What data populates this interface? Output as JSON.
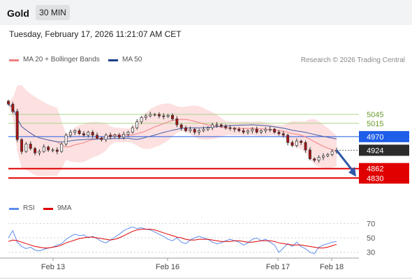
{
  "header": {
    "instrument": "Gold",
    "timeframe": "30 MIN",
    "datetime": "Tuesday, February 17, 2026 11:21:07 AM CET",
    "credit": "Research © 2026 Trading Central"
  },
  "legend": {
    "ma20": "MA 20 + Bollinger Bands",
    "ma50": "MA 50",
    "rsi": "RSI",
    "ma9": "9MA"
  },
  "colors": {
    "ma20": "#f08080",
    "ma50": "#3e5fa8",
    "band_fill": "#fde0e0",
    "green_level": "#a8d58b",
    "resistance_blue": "#1f5ee8",
    "support_red": "#e00000",
    "current_price_box": "#2b2b2b",
    "rsi": "#5b8def",
    "rsi_ma": "#e00000",
    "candle_up": "#ffffff",
    "candle_down": "#aa1111",
    "wick": "#333333",
    "arrow": "#2f56a8"
  },
  "chart_data": [
    {
      "type": "candlestick",
      "title": "",
      "x_ticks": [
        "Feb 13",
        "Feb 16",
        "Feb 17",
        "Feb 18"
      ],
      "ylim": [
        4800,
        5130
      ],
      "levels": [
        {
          "value": 5045,
          "label": "5045",
          "kind": "resistance-weak"
        },
        {
          "value": 5015,
          "label": "5015",
          "kind": "resistance-weak"
        },
        {
          "value": 4970,
          "label": "4970",
          "kind": "pivot"
        },
        {
          "value": 4924,
          "label": "4924",
          "kind": "current"
        },
        {
          "value": 4862,
          "label": "4862",
          "kind": "support"
        },
        {
          "value": 4830,
          "label": "4830",
          "kind": "support"
        }
      ],
      "forecast_target": 4830,
      "price": [
        5080,
        5055,
        4960,
        4920,
        4945,
        4930,
        4915,
        4920,
        4935,
        4925,
        4925,
        4920,
        4945,
        4975,
        4985,
        4990,
        4980,
        4975,
        4985,
        4975,
        4965,
        4960,
        4975,
        4970,
        4975,
        4968,
        4978,
        4985,
        5000,
        5020,
        5035,
        5040,
        5045,
        5045,
        5040,
        5038,
        5042,
        5030,
        5010,
        5000,
        4990,
        4995,
        4985,
        4990,
        4995,
        5000,
        5010,
        5010,
        5005,
        5000,
        4998,
        4995,
        4990,
        4985,
        4990,
        4995,
        4985,
        4990,
        4995,
        4995,
        4985,
        4980,
        4975,
        4950,
        4940,
        4955,
        4950,
        4925,
        4895,
        4890,
        4900,
        4905,
        4910,
        4920,
        4924
      ]
    },
    {
      "type": "line",
      "title": "",
      "yticks": [
        30,
        50,
        70
      ],
      "ylim": [
        20,
        80
      ],
      "series": [
        {
          "name": "RSI",
          "values": [
            50,
            60,
            44,
            38,
            35,
            37,
            33,
            32,
            34,
            36,
            37,
            40,
            42,
            48,
            52,
            55,
            53,
            54,
            50,
            52,
            49,
            45,
            43,
            47,
            51,
            55,
            60,
            63,
            65,
            63,
            64,
            62,
            61,
            58,
            55,
            52,
            48,
            46,
            50,
            44,
            42,
            47,
            50,
            52,
            50,
            48,
            44,
            42,
            43,
            46,
            48,
            46,
            44,
            40,
            43,
            48,
            50,
            46,
            48,
            44,
            40,
            30,
            36,
            42,
            38,
            44,
            38,
            35,
            30,
            28,
            37,
            40,
            42,
            44,
            45
          ]
        },
        {
          "name": "9MA",
          "values": [
            45,
            47,
            46,
            44,
            42,
            40,
            38,
            37,
            36,
            36,
            37,
            38,
            40,
            43,
            45,
            47,
            49,
            50,
            51,
            51,
            50,
            49,
            48,
            47,
            48,
            50,
            53,
            56,
            59,
            61,
            62,
            62,
            62,
            61,
            59,
            57,
            55,
            53,
            51,
            50,
            48,
            47,
            47,
            48,
            48,
            48,
            47,
            46,
            45,
            45,
            45,
            46,
            46,
            45,
            44,
            44,
            45,
            46,
            46,
            46,
            45,
            43,
            42,
            41,
            40,
            40,
            40,
            39,
            38,
            37,
            36,
            36,
            37,
            39,
            41
          ]
        }
      ]
    }
  ]
}
